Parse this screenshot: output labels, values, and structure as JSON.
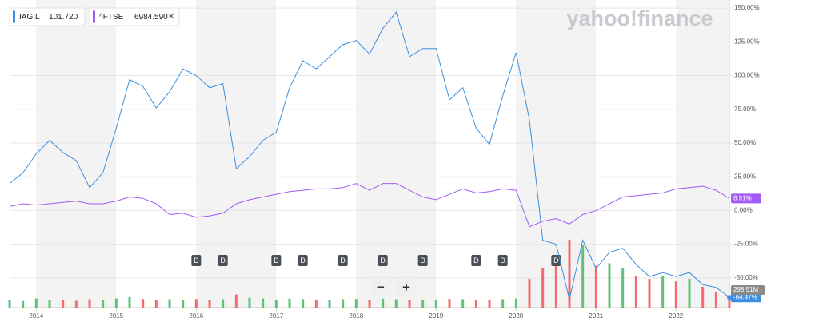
{
  "chart_data": {
    "type": "line",
    "brand": "yahoo!finance",
    "categories": [
      null,
      null,
      "2014",
      null,
      null,
      null,
      null,
      null,
      "2015",
      null,
      null,
      null,
      null,
      null,
      "2016",
      null,
      null,
      null,
      null,
      null,
      "2017",
      null,
      null,
      null,
      null,
      null,
      "2018",
      null,
      null,
      null,
      null,
      null,
      "2019",
      null,
      null,
      null,
      null,
      null,
      "2020",
      null,
      null,
      null,
      null,
      null,
      "2021",
      null,
      null,
      null,
      null,
      null,
      "2022",
      null,
      null,
      null,
      null
    ],
    "series": [
      {
        "name": "IAG.L",
        "quote": "101.720",
        "color": "#3d8fe3",
        "end_label": "-64.47%",
        "values": [
          20,
          28,
          42,
          52,
          43,
          37,
          17,
          28,
          61,
          97,
          92,
          76,
          88,
          105,
          100,
          91,
          94,
          31,
          40,
          52,
          58,
          91,
          111,
          105,
          114,
          123,
          126,
          116,
          135,
          147,
          114,
          120,
          120,
          82,
          91,
          61,
          49,
          85,
          117,
          67,
          -22,
          -25,
          -66,
          -22,
          -43,
          -31,
          -28,
          -40,
          -49,
          -46,
          -49,
          -46,
          -55,
          -57,
          -64.47
        ]
      },
      {
        "name": "^FTSE",
        "quote": "6984.590",
        "color": "#a259f7",
        "end_label": "8.91%",
        "values": [
          3,
          5,
          4,
          5,
          6,
          7,
          5,
          5,
          7,
          10,
          9,
          5,
          -3,
          -2,
          -5,
          -4,
          -2,
          5,
          8,
          10,
          12,
          14,
          15,
          16,
          16,
          17,
          20,
          15,
          20,
          20,
          15,
          10,
          8,
          12,
          16,
          13,
          14,
          16,
          15,
          -12,
          -8,
          -6,
          -10,
          -3,
          0,
          5,
          10,
          11,
          12,
          13,
          16,
          17,
          18,
          15,
          8.91
        ]
      }
    ],
    "volume": {
      "up_color": "#5ec27a",
      "down_color": "#f36b6e",
      "end_label": "298.51M",
      "values": [
        300,
        250,
        350,
        280,
        300,
        260,
        320,
        300,
        350,
        400,
        330,
        300,
        320,
        310,
        330,
        300,
        320,
        500,
        380,
        350,
        300,
        340,
        330,
        310,
        300,
        320,
        330,
        300,
        340,
        320,
        300,
        310,
        300,
        330,
        320,
        300,
        310,
        320,
        350,
        1100,
        1500,
        1800,
        2600,
        2400,
        1600,
        1700,
        1500,
        1200,
        1100,
        1200,
        1000,
        1100,
        800,
        600,
        298.51
      ]
    },
    "dividends": {
      "label": "D",
      "at": [
        14,
        16,
        20,
        22,
        25,
        28,
        31,
        35,
        37,
        41
      ]
    },
    "zoom": [
      "−",
      "+"
    ],
    "ylim": [
      -72,
      156
    ],
    "yticks": [
      {
        "value": -50,
        "label": "-50.00%"
      },
      {
        "value": -25,
        "label": "-25.00%"
      },
      {
        "value": 0,
        "label": "0.00%"
      },
      {
        "value": 25,
        "label": "25.00%"
      },
      {
        "value": 50,
        "label": "50.00%"
      },
      {
        "value": 75,
        "label": "75.00%"
      },
      {
        "value": 100,
        "label": "100.00%"
      },
      {
        "value": 125,
        "label": "125.00%"
      },
      {
        "value": 150,
        "label": "150.00%"
      }
    ],
    "grid": true
  }
}
